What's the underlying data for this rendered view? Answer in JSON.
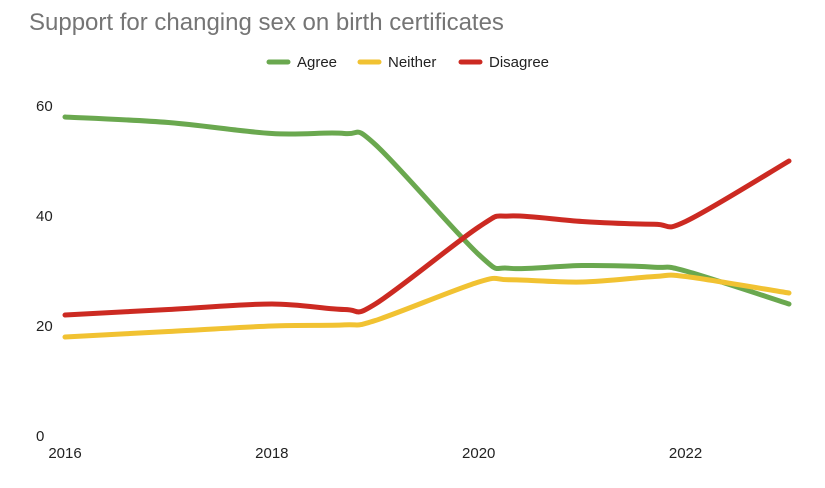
{
  "chart_data": {
    "type": "line",
    "title": "Support for changing sex on birth certificates",
    "xlabel": "",
    "ylabel": "",
    "x": [
      2016,
      2017,
      2018,
      2018.7,
      2019,
      2020,
      2020.3,
      2021,
      2021.7,
      2022,
      2023
    ],
    "xlim": [
      2016,
      2023
    ],
    "ylim": [
      0,
      60
    ],
    "xticks": [
      "2016",
      "2018",
      "2020",
      "2022"
    ],
    "yticks": [
      "0",
      "20",
      "40",
      "60"
    ],
    "grid": false,
    "legend_position": "top",
    "series": [
      {
        "name": "Agree",
        "color": "#6aa84f",
        "values": [
          58,
          57,
          55,
          55,
          53,
          33,
          30.5,
          31,
          30.7,
          30,
          24
        ]
      },
      {
        "name": "Neither",
        "color": "#f1c232",
        "values": [
          18,
          19,
          20,
          20.2,
          21,
          28,
          28.4,
          28,
          29,
          29,
          26
        ]
      },
      {
        "name": "Disagree",
        "color": "#cc2a22",
        "values": [
          22,
          23,
          24,
          23,
          24,
          38,
          40,
          39,
          38.5,
          39,
          50
        ]
      }
    ]
  }
}
